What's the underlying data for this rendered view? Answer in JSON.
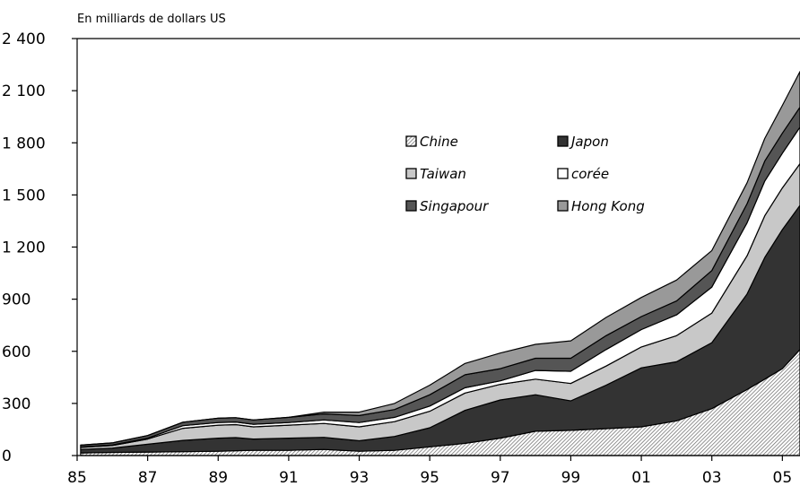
{
  "chart_data": {
    "type": "area",
    "stacked": true,
    "ylabel": "En milliards de dollars US",
    "xlim": [
      1985,
      2005.5
    ],
    "ylim": [
      0,
      2400
    ],
    "y_ticks": [
      0,
      300,
      600,
      900,
      1200,
      1500,
      1800,
      2100,
      2400
    ],
    "y_tick_labels": [
      "0",
      "300",
      "600",
      "900",
      "1 200",
      "1 500",
      "1 800",
      "2 100",
      "2 400"
    ],
    "x_ticks": [
      1985,
      1987,
      1989,
      1991,
      1993,
      1995,
      1997,
      1999,
      2001,
      2003,
      2005
    ],
    "x_tick_labels": [
      "85",
      "87",
      "89",
      "91",
      "93",
      "95",
      "97",
      "99",
      "01",
      "03",
      "05"
    ],
    "grid": false,
    "legend": {
      "placement": "top-center",
      "columns": 2,
      "entries": [
        "Chine",
        "Japon",
        "Taiwan",
        "corée",
        "Singapour",
        "Hong Kong"
      ]
    },
    "x": [
      1985.1,
      1986,
      1987,
      1988,
      1989,
      1989.5,
      1990,
      1991,
      1992,
      1993,
      1994,
      1995,
      1996,
      1997,
      1998,
      1999,
      2000,
      2001,
      2002,
      2003,
      2004,
      2004.5,
      2005,
      2005.5
    ],
    "series": [
      {
        "name": "Chine",
        "color": "#cfcfcf",
        "pattern": "hatch",
        "values": [
          15,
          18,
          20,
          22,
          25,
          28,
          30,
          30,
          35,
          25,
          30,
          50,
          70,
          100,
          140,
          145,
          155,
          165,
          200,
          270,
          380,
          440,
          500,
          610
        ]
      },
      {
        "name": "Japon",
        "color": "#333333",
        "values": [
          20,
          25,
          45,
          65,
          75,
          75,
          65,
          70,
          70,
          60,
          80,
          110,
          190,
          220,
          210,
          170,
          250,
          340,
          340,
          380,
          550,
          700,
          800,
          830
        ]
      },
      {
        "name": "Taiwan",
        "color": "#c8c8c8",
        "values": [
          12,
          15,
          30,
          70,
          75,
          75,
          70,
          75,
          80,
          80,
          85,
          95,
          100,
          90,
          90,
          100,
          110,
          120,
          150,
          170,
          220,
          240,
          240,
          240
        ]
      },
      {
        "name": "corée",
        "color": "#ffffff",
        "values": [
          3,
          3,
          5,
          15,
          15,
          15,
          15,
          15,
          20,
          25,
          25,
          30,
          30,
          20,
          50,
          70,
          95,
          100,
          120,
          150,
          190,
          200,
          200,
          210
        ]
      },
      {
        "name": "Singapour",
        "color": "#555555",
        "values": [
          10,
          12,
          15,
          20,
          25,
          25,
          25,
          30,
          35,
          40,
          45,
          65,
          75,
          70,
          70,
          75,
          80,
          75,
          80,
          95,
          110,
          115,
          115,
          115
        ]
      },
      {
        "name": "Hong Kong",
        "color": "#999999",
        "values": [
          0,
          0,
          0,
          0,
          0,
          0,
          0,
          0,
          10,
          20,
          35,
          55,
          65,
          90,
          80,
          100,
          105,
          110,
          120,
          115,
          120,
          130,
          160,
          205
        ]
      }
    ]
  }
}
